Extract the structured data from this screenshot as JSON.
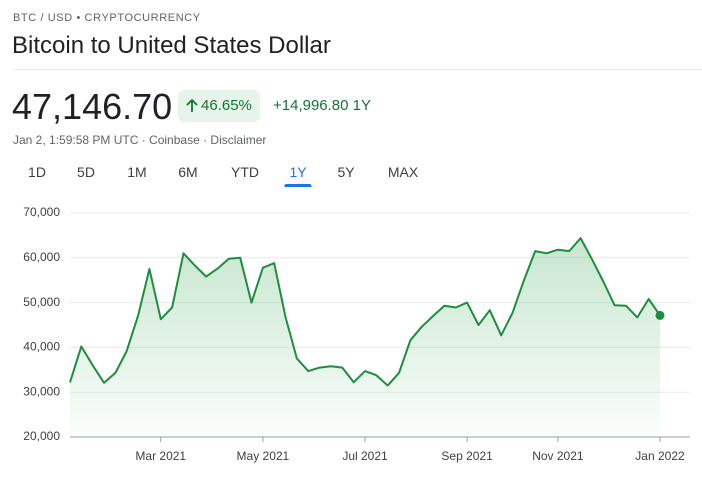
{
  "header": {
    "eyebrow": "BTC / USD • CRYPTOCURRENCY",
    "title": "Bitcoin to United States Dollar"
  },
  "quote": {
    "price": "47,146.70",
    "change_percent": "46.65%",
    "change": "+14,996.80",
    "period": "1Y",
    "meta": "Jan 2, 1:59:58 PM UTC · Coinbase · Disclaimer"
  },
  "tabs": [
    "1D",
    "5D",
    "1M",
    "6M",
    "YTD",
    "1Y",
    "5Y",
    "MAX"
  ],
  "selected_tab": 5,
  "chart_data": {
    "type": "line",
    "categories": [
      null,
      null,
      null,
      null,
      null,
      null,
      null,
      null,
      "Mar 2021",
      null,
      null,
      null,
      null,
      null,
      null,
      null,
      null,
      "May 2021",
      null,
      null,
      null,
      null,
      null,
      null,
      null,
      null,
      "Jul 2021",
      null,
      null,
      null,
      null,
      null,
      null,
      null,
      null,
      "Sep 2021",
      null,
      null,
      null,
      null,
      null,
      null,
      null,
      "Nov 2021",
      null,
      null,
      null,
      null,
      null,
      null,
      null,
      null,
      "Jan 2022"
    ],
    "values": [
      32200,
      40200,
      36000,
      32100,
      34300,
      39200,
      47100,
      57500,
      46300,
      48900,
      61000,
      58300,
      55800,
      57600,
      59800,
      60000,
      50000,
      57800,
      58800,
      46700,
      37500,
      34700,
      35500,
      35800,
      35500,
      32200,
      34700,
      33800,
      31500,
      34300,
      41600,
      44600,
      47000,
      49300,
      48900,
      50000,
      45000,
      48300,
      42700,
      47700,
      54900,
      61500,
      61000,
      61800,
      61500,
      64400,
      59700,
      54700,
      49400,
      49300,
      46700,
      50800,
      47146.7
    ],
    "color": "#1e8e3e",
    "ylim": [
      20000,
      70000
    ],
    "yticks": [
      {
        "value": 20000,
        "label": "20,000"
      },
      {
        "value": 30000,
        "label": "30,000"
      },
      {
        "value": 40000,
        "label": "40,000"
      },
      {
        "value": 50000,
        "label": "50,000"
      },
      {
        "value": 60000,
        "label": "60,000"
      },
      {
        "value": 70000,
        "label": "70,000"
      }
    ],
    "grid": true
  }
}
